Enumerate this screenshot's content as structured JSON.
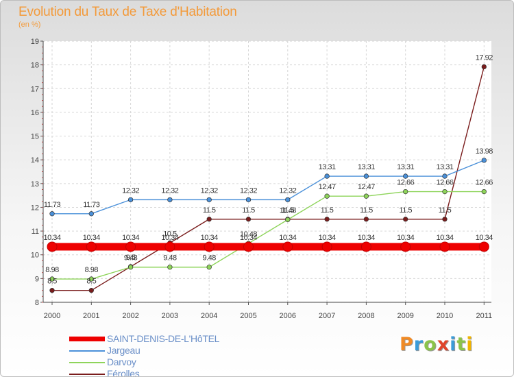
{
  "chart_data": {
    "type": "line",
    "title": "Evolution du Taux de Taxe d'Habitation",
    "subtitle": "(en %)",
    "x": [
      "2000",
      "2001",
      "2002",
      "2003",
      "2004",
      "2005",
      "2006",
      "2007",
      "2008",
      "2009",
      "2010",
      "2011"
    ],
    "ylim": [
      8,
      19
    ],
    "yticks": [
      8,
      9,
      10,
      11,
      12,
      13,
      14,
      15,
      16,
      17,
      18,
      19
    ],
    "grid": true,
    "legend_position": "bottom-left",
    "series": [
      {
        "name": "SAINT-DENIS-DE-L'HôTEL",
        "color": "#ee0000",
        "values": [
          10.34,
          10.34,
          10.34,
          10.34,
          10.34,
          10.34,
          10.34,
          10.34,
          10.34,
          10.34,
          10.34,
          10.34
        ],
        "labels": [
          "10.34",
          "10.34",
          "10.34",
          "10.34",
          "10.34",
          "10.34",
          "10.34",
          "10.34",
          "10.34",
          "10.34",
          "10.34",
          "10.34"
        ]
      },
      {
        "name": "Jargeau",
        "color": "#4a90d9",
        "values": [
          11.73,
          11.73,
          12.32,
          12.32,
          12.32,
          12.32,
          12.32,
          13.31,
          13.31,
          13.31,
          13.31,
          13.98
        ],
        "labels": [
          "11.73",
          "11.73",
          "12.32",
          "12.32",
          "12.32",
          "12.32",
          "12.32",
          "13.31",
          "13.31",
          "13.31",
          "13.31",
          "13.98"
        ]
      },
      {
        "name": "Darvoy",
        "color": "#8ed45a",
        "values": [
          8.98,
          8.98,
          9.48,
          9.48,
          9.48,
          10.48,
          11.48,
          12.47,
          12.47,
          12.66,
          12.66,
          12.66
        ],
        "labels": [
          "8.98",
          "8.98",
          "9.48",
          "9.48",
          "9.48",
          "10.48",
          "11.48",
          "12.47",
          "12.47",
          "12.66",
          "12.66",
          "12.66"
        ]
      },
      {
        "name": "Férolles",
        "color": "#7a1c1c",
        "values": [
          8.5,
          8.5,
          9.5,
          10.5,
          11.5,
          11.5,
          11.5,
          11.5,
          11.5,
          11.5,
          11.5,
          17.92
        ],
        "labels": [
          "8.5",
          "8.5",
          "9.5",
          "10.5",
          "11.5",
          "11.5",
          "11.5",
          "11.5",
          "11.5",
          "11.5",
          "11.5",
          "17.92"
        ]
      }
    ]
  },
  "brand": {
    "text": "Proxiti",
    "letter_colors": [
      "#f08a24",
      "#3a9bd8",
      "#8bc34a",
      "#e0452b",
      "#3a9bd8",
      "#8bc34a",
      "#f0b400"
    ]
  }
}
